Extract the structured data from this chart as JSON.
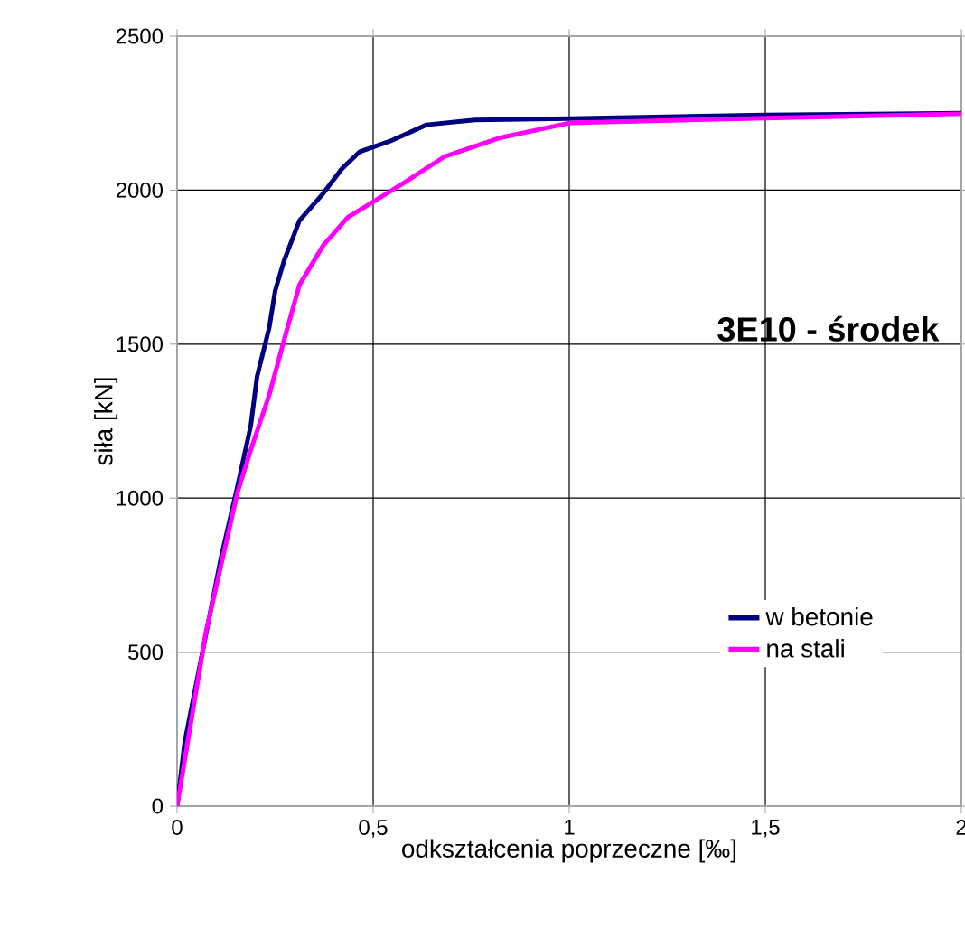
{
  "chart_data": {
    "type": "line",
    "xlabel": "odkształcenia poprzeczne [‰]",
    "ylabel": "siła [kN]",
    "annotations": [
      "**3E10 - środek**"
    ],
    "xlim": [
      0,
      2
    ],
    "ylim": [
      0,
      2500
    ],
    "xticks": [
      {
        "value": 0,
        "label": "0"
      },
      {
        "value": 0.5,
        "label": "0,5"
      },
      {
        "value": 1,
        "label": "1"
      },
      {
        "value": 1.5,
        "label": "1,5"
      },
      {
        "value": 2,
        "label": "2"
      }
    ],
    "yticks": [
      0,
      500,
      1000,
      1500,
      2000,
      2500
    ],
    "grid": true,
    "legend": "right",
    "line_style": "solid",
    "marker": "none",
    "series": [
      {
        "name": "w betonie",
        "color": "#000080",
        "x": [
          0,
          0.019,
          0.073,
          0.111,
          0.154,
          0.188,
          0.204,
          0.235,
          0.25,
          0.273,
          0.312,
          0.373,
          0.42,
          0.466,
          0.543,
          0.636,
          0.759,
          1.0,
          1.5,
          2.0
        ],
        "values": [
          0,
          204,
          null,
          800,
          1038,
          1236,
          1395,
          1554,
          1673,
          1772,
          1901,
          1990,
          2069,
          2125,
          2159,
          2212,
          2228,
          2232,
          2244,
          2250
        ]
      },
      {
        "name": "na stali",
        "color": "#ff00ff",
        "x": [
          0,
          0.073,
          0.154,
          0.188,
          0.235,
          0.273,
          0.312,
          0.373,
          0.435,
          0.574,
          0.682,
          0.821,
          1.0,
          1.5,
          2.0
        ],
        "values": [
          0,
          562,
          1018,
          1157,
          1335,
          1514,
          1692,
          1821,
          1911,
          2020,
          2109,
          2169,
          2218,
          2234,
          2248
        ]
      }
    ]
  }
}
